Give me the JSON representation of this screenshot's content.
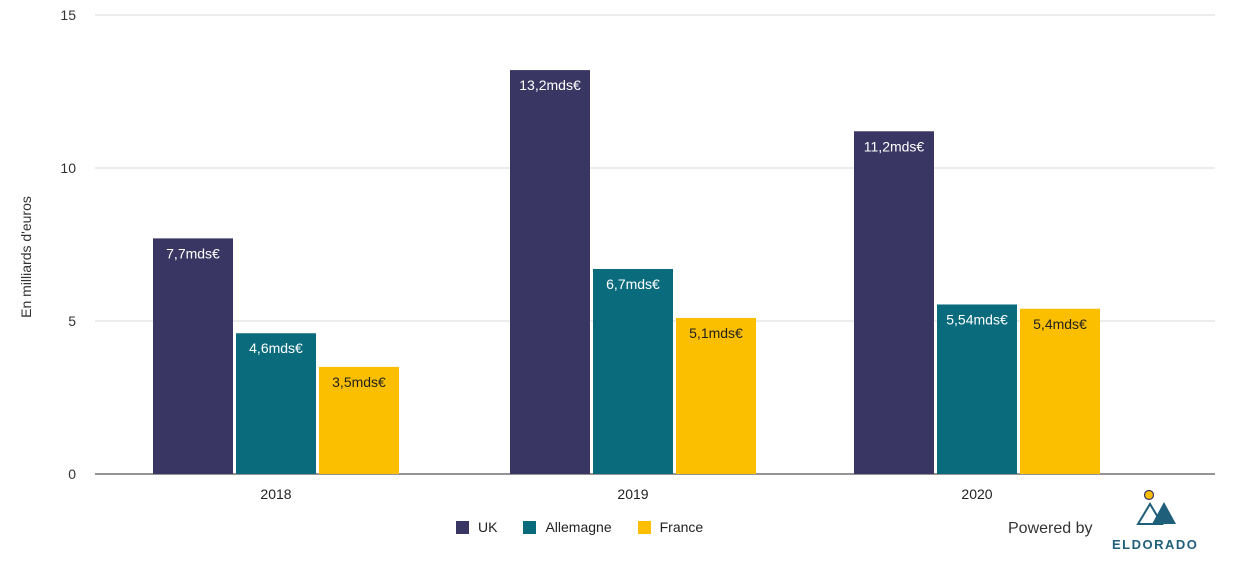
{
  "chart_data": {
    "type": "bar",
    "categories": [
      "2018",
      "2019",
      "2020"
    ],
    "series": [
      {
        "name": "UK",
        "values": [
          7.7,
          13.2,
          11.2
        ],
        "labels": [
          "7,7mds€",
          "13,2mds€",
          "11,2mds€"
        ],
        "color": "#3a3663",
        "label_color": "#ffffff"
      },
      {
        "name": "Allemagne",
        "values": [
          4.6,
          6.7,
          5.54
        ],
        "labels": [
          "4,6mds€",
          "6,7mds€",
          "5,54mds€"
        ],
        "color": "#0a6b7d",
        "label_color": "#ffffff"
      },
      {
        "name": "France",
        "values": [
          3.5,
          5.1,
          5.4
        ],
        "labels": [
          "3,5mds€",
          "5,1mds€",
          "5,4mds€"
        ],
        "color": "#fbbf00",
        "label_color": "#222222"
      }
    ],
    "yticks": [
      "0",
      "5",
      "10",
      "15"
    ],
    "ylim": [
      0,
      15
    ],
    "ylabel": "En milliards d'euros",
    "grid": true,
    "legend_position": "bottom"
  },
  "branding": {
    "powered_by": "Powered by",
    "logo_text": "ELDORADO",
    "logo_colors": {
      "peak": "#1f5f7a",
      "sun": "#fbbf00"
    }
  }
}
